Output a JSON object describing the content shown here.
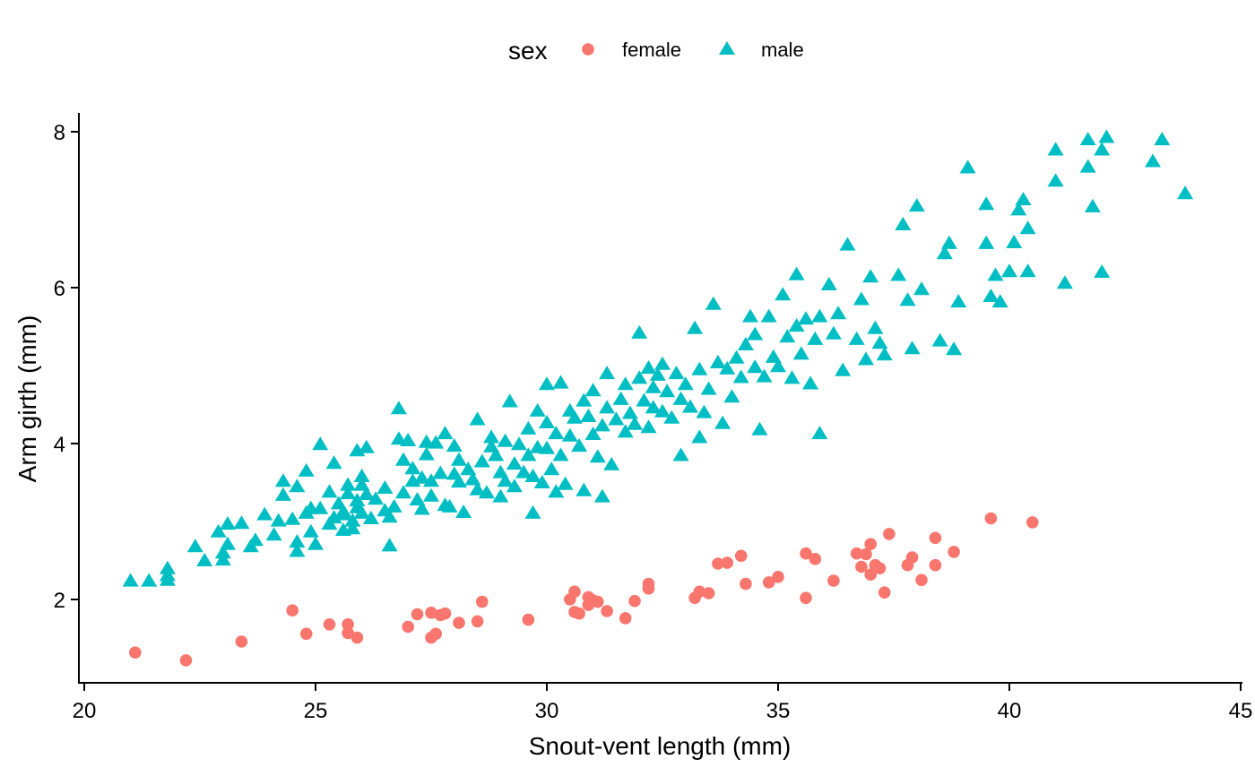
{
  "chart_data": {
    "type": "scatter",
    "title": "",
    "xlabel": "Snout-vent length (mm)",
    "ylabel": "Arm girth (mm)",
    "xlim": [
      19.8,
      45
    ],
    "ylim": [
      0.9,
      8.25
    ],
    "x_ticks": [
      20,
      25,
      30,
      35,
      40,
      45
    ],
    "x_tick_labels": [
      "20",
      "25",
      "30",
      "35",
      "40",
      "45"
    ],
    "y_ticks": [
      2,
      4,
      6,
      8
    ],
    "y_tick_labels": [
      "2",
      "4",
      "6",
      "8"
    ],
    "grid": false,
    "legend": {
      "title": "sex",
      "position": "top",
      "entries": [
        {
          "label": "female",
          "shape": "circle",
          "color": "#F8766D"
        },
        {
          "label": "male",
          "shape": "triangle",
          "color": "#00BFC4"
        }
      ]
    },
    "series": [
      {
        "name": "female",
        "shape": "circle",
        "color": "#F8766D",
        "points": [
          [
            21.1,
            1.32
          ],
          [
            22.2,
            1.22
          ],
          [
            23.4,
            1.46
          ],
          [
            24.5,
            1.86
          ],
          [
            24.8,
            1.56
          ],
          [
            25.3,
            1.68
          ],
          [
            25.7,
            1.68
          ],
          [
            25.7,
            1.57
          ],
          [
            25.9,
            1.51
          ],
          [
            27.0,
            1.65
          ],
          [
            27.2,
            1.81
          ],
          [
            27.5,
            1.83
          ],
          [
            27.5,
            1.51
          ],
          [
            27.6,
            1.56
          ],
          [
            27.7,
            1.8
          ],
          [
            27.8,
            1.82
          ],
          [
            28.1,
            1.7
          ],
          [
            28.5,
            1.72
          ],
          [
            28.6,
            1.97
          ],
          [
            29.6,
            1.74
          ],
          [
            30.5,
            2.0
          ],
          [
            30.6,
            2.1
          ],
          [
            30.6,
            1.84
          ],
          [
            30.7,
            1.82
          ],
          [
            30.9,
            2.03
          ],
          [
            30.9,
            1.93
          ],
          [
            31.0,
            1.99
          ],
          [
            31.1,
            1.97
          ],
          [
            31.3,
            1.85
          ],
          [
            31.7,
            1.76
          ],
          [
            31.9,
            1.98
          ],
          [
            32.2,
            2.2
          ],
          [
            32.2,
            2.14
          ],
          [
            33.2,
            2.02
          ],
          [
            33.3,
            2.1
          ],
          [
            33.5,
            2.08
          ],
          [
            33.7,
            2.46
          ],
          [
            33.9,
            2.47
          ],
          [
            34.2,
            2.56
          ],
          [
            34.3,
            2.2
          ],
          [
            34.8,
            2.22
          ],
          [
            35.0,
            2.29
          ],
          [
            35.6,
            2.02
          ],
          [
            35.6,
            2.59
          ],
          [
            35.8,
            2.52
          ],
          [
            36.2,
            2.24
          ],
          [
            36.7,
            2.59
          ],
          [
            36.8,
            2.42
          ],
          [
            36.9,
            2.58
          ],
          [
            37.0,
            2.71
          ],
          [
            37.0,
            2.32
          ],
          [
            37.1,
            2.44
          ],
          [
            37.2,
            2.4
          ],
          [
            37.3,
            2.09
          ],
          [
            37.4,
            2.84
          ],
          [
            37.8,
            2.44
          ],
          [
            37.9,
            2.54
          ],
          [
            38.1,
            2.25
          ],
          [
            38.4,
            2.44
          ],
          [
            38.4,
            2.79
          ],
          [
            38.8,
            2.61
          ],
          [
            39.6,
            3.04
          ],
          [
            40.5,
            2.99
          ]
        ]
      },
      {
        "name": "male",
        "shape": "triangle",
        "color": "#00BFC4",
        "points": [
          [
            21.0,
            2.24
          ],
          [
            21.4,
            2.24
          ],
          [
            21.8,
            2.25
          ],
          [
            21.8,
            2.31
          ],
          [
            21.8,
            2.4
          ],
          [
            22.4,
            2.68
          ],
          [
            22.6,
            2.5
          ],
          [
            22.9,
            2.87
          ],
          [
            23.0,
            2.51
          ],
          [
            23.0,
            2.6
          ],
          [
            23.1,
            2.71
          ],
          [
            23.1,
            2.97
          ],
          [
            23.4,
            2.98
          ],
          [
            23.6,
            2.68
          ],
          [
            23.7,
            2.76
          ],
          [
            23.9,
            3.09
          ],
          [
            24.1,
            2.83
          ],
          [
            24.2,
            3.01
          ],
          [
            24.3,
            3.34
          ],
          [
            24.3,
            3.52
          ],
          [
            24.5,
            3.03
          ],
          [
            24.6,
            2.74
          ],
          [
            24.6,
            3.45
          ],
          [
            24.6,
            2.62
          ],
          [
            24.8,
            3.11
          ],
          [
            24.8,
            3.65
          ],
          [
            24.9,
            2.87
          ],
          [
            24.9,
            3.17
          ],
          [
            25.0,
            2.71
          ],
          [
            25.1,
            3.99
          ],
          [
            25.1,
            3.17
          ],
          [
            25.3,
            3.38
          ],
          [
            25.3,
            2.97
          ],
          [
            25.4,
            3.75
          ],
          [
            25.4,
            3.05
          ],
          [
            25.5,
            3.23
          ],
          [
            25.6,
            3.13
          ],
          [
            25.6,
            2.89
          ],
          [
            25.6,
            3.09
          ],
          [
            25.7,
            3.47
          ],
          [
            25.7,
            3.36
          ],
          [
            25.8,
            3.01
          ],
          [
            25.8,
            2.91
          ],
          [
            25.9,
            3.27
          ],
          [
            25.9,
            3.18
          ],
          [
            25.9,
            3.91
          ],
          [
            26.0,
            3.47
          ],
          [
            26.0,
            3.11
          ],
          [
            26.0,
            3.58
          ],
          [
            26.1,
            3.95
          ],
          [
            26.1,
            3.35
          ],
          [
            26.2,
            3.04
          ],
          [
            26.3,
            3.29
          ],
          [
            26.5,
            3.14
          ],
          [
            26.5,
            3.43
          ],
          [
            26.6,
            3.06
          ],
          [
            26.6,
            2.69
          ],
          [
            26.7,
            3.19
          ],
          [
            26.8,
            4.06
          ],
          [
            26.8,
            4.45
          ],
          [
            26.9,
            3.37
          ],
          [
            26.9,
            3.79
          ],
          [
            27.0,
            4.04
          ],
          [
            27.1,
            3.68
          ],
          [
            27.1,
            3.52
          ],
          [
            27.2,
            3.28
          ],
          [
            27.3,
            3.56
          ],
          [
            27.3,
            3.16
          ],
          [
            27.4,
            3.86
          ],
          [
            27.4,
            4.02
          ],
          [
            27.5,
            3.52
          ],
          [
            27.5,
            3.33
          ],
          [
            27.6,
            4.01
          ],
          [
            27.7,
            3.62
          ],
          [
            27.8,
            3.21
          ],
          [
            27.8,
            4.13
          ],
          [
            27.9,
            3.19
          ],
          [
            28.0,
            3.61
          ],
          [
            28.0,
            3.97
          ],
          [
            28.1,
            3.51
          ],
          [
            28.1,
            3.79
          ],
          [
            28.2,
            3.12
          ],
          [
            28.3,
            3.67
          ],
          [
            28.4,
            3.54
          ],
          [
            28.5,
            4.31
          ],
          [
            28.5,
            3.41
          ],
          [
            28.6,
            3.77
          ],
          [
            28.7,
            3.37
          ],
          [
            28.8,
            3.96
          ],
          [
            28.8,
            4.08
          ],
          [
            28.9,
            3.85
          ],
          [
            29.0,
            3.63
          ],
          [
            29.0,
            3.32
          ],
          [
            29.1,
            4.03
          ],
          [
            29.1,
            3.52
          ],
          [
            29.2,
            4.54
          ],
          [
            29.3,
            3.74
          ],
          [
            29.3,
            3.45
          ],
          [
            29.4,
            3.99
          ],
          [
            29.5,
            3.63
          ],
          [
            29.6,
            4.19
          ],
          [
            29.6,
            3.85
          ],
          [
            29.7,
            3.58
          ],
          [
            29.7,
            3.11
          ],
          [
            29.8,
            4.42
          ],
          [
            29.8,
            3.95
          ],
          [
            29.9,
            3.5
          ],
          [
            30.0,
            4.76
          ],
          [
            30.0,
            4.27
          ],
          [
            30.0,
            3.94
          ],
          [
            30.1,
            3.67
          ],
          [
            30.2,
            3.38
          ],
          [
            30.2,
            4.13
          ],
          [
            30.3,
            4.78
          ],
          [
            30.3,
            3.85
          ],
          [
            30.4,
            3.48
          ],
          [
            30.5,
            4.42
          ],
          [
            30.5,
            4.1
          ],
          [
            30.6,
            4.33
          ],
          [
            30.7,
            3.97
          ],
          [
            30.8,
            4.55
          ],
          [
            30.8,
            3.4
          ],
          [
            30.9,
            4.35
          ],
          [
            31.0,
            4.12
          ],
          [
            31.0,
            4.68
          ],
          [
            31.1,
            3.83
          ],
          [
            31.2,
            4.23
          ],
          [
            31.2,
            3.32
          ],
          [
            31.3,
            4.9
          ],
          [
            31.3,
            4.46
          ],
          [
            31.4,
            3.73
          ],
          [
            31.5,
            4.31
          ],
          [
            31.6,
            4.57
          ],
          [
            31.7,
            4.15
          ],
          [
            31.7,
            4.76
          ],
          [
            31.8,
            4.39
          ],
          [
            31.9,
            4.25
          ],
          [
            32.0,
            5.42
          ],
          [
            32.0,
            4.84
          ],
          [
            32.1,
            4.55
          ],
          [
            32.2,
            4.21
          ],
          [
            32.2,
            4.97
          ],
          [
            32.3,
            4.72
          ],
          [
            32.3,
            4.46
          ],
          [
            32.4,
            4.88
          ],
          [
            32.5,
            4.41
          ],
          [
            32.5,
            5.02
          ],
          [
            32.6,
            4.67
          ],
          [
            32.7,
            4.33
          ],
          [
            32.8,
            4.9
          ],
          [
            32.9,
            4.57
          ],
          [
            32.9,
            3.85
          ],
          [
            33.0,
            4.76
          ],
          [
            33.1,
            4.47
          ],
          [
            33.2,
            5.48
          ],
          [
            33.3,
            4.95
          ],
          [
            33.3,
            4.08
          ],
          [
            33.4,
            4.4
          ],
          [
            33.5,
            4.7
          ],
          [
            33.6,
            5.79
          ],
          [
            33.7,
            5.04
          ],
          [
            33.8,
            4.26
          ],
          [
            33.9,
            4.96
          ],
          [
            34.0,
            4.6
          ],
          [
            34.1,
            5.1
          ],
          [
            34.2,
            4.85
          ],
          [
            34.3,
            5.27
          ],
          [
            34.4,
            5.63
          ],
          [
            34.5,
            4.98
          ],
          [
            34.5,
            5.4
          ],
          [
            34.6,
            4.18
          ],
          [
            34.7,
            4.86
          ],
          [
            34.8,
            5.63
          ],
          [
            34.9,
            5.11
          ],
          [
            35.0,
            4.99
          ],
          [
            35.1,
            5.91
          ],
          [
            35.2,
            5.37
          ],
          [
            35.3,
            4.84
          ],
          [
            35.4,
            6.17
          ],
          [
            35.4,
            5.51
          ],
          [
            35.5,
            5.15
          ],
          [
            35.6,
            5.6
          ],
          [
            35.7,
            4.77
          ],
          [
            35.8,
            5.34
          ],
          [
            35.9,
            5.63
          ],
          [
            35.9,
            4.13
          ],
          [
            36.1,
            6.04
          ],
          [
            36.2,
            5.41
          ],
          [
            36.3,
            5.67
          ],
          [
            36.4,
            4.94
          ],
          [
            36.5,
            6.55
          ],
          [
            36.7,
            5.34
          ],
          [
            36.8,
            5.85
          ],
          [
            36.9,
            5.08
          ],
          [
            37.0,
            6.14
          ],
          [
            37.1,
            5.48
          ],
          [
            37.2,
            5.29
          ],
          [
            37.3,
            5.14
          ],
          [
            37.6,
            6.16
          ],
          [
            37.7,
            6.81
          ],
          [
            37.8,
            5.84
          ],
          [
            37.9,
            5.22
          ],
          [
            38.0,
            7.05
          ],
          [
            38.1,
            5.98
          ],
          [
            38.5,
            5.32
          ],
          [
            38.6,
            6.44
          ],
          [
            38.7,
            6.57
          ],
          [
            38.8,
            5.21
          ],
          [
            38.9,
            5.82
          ],
          [
            39.1,
            7.54
          ],
          [
            39.5,
            7.07
          ],
          [
            39.5,
            6.57
          ],
          [
            39.6,
            5.89
          ],
          [
            39.7,
            6.16
          ],
          [
            39.8,
            5.82
          ],
          [
            40.0,
            6.21
          ],
          [
            40.1,
            6.58
          ],
          [
            40.2,
            7.0
          ],
          [
            40.3,
            7.13
          ],
          [
            40.4,
            6.76
          ],
          [
            40.4,
            6.21
          ],
          [
            41.0,
            7.37
          ],
          [
            41.0,
            7.77
          ],
          [
            41.2,
            6.06
          ],
          [
            41.7,
            7.9
          ],
          [
            41.7,
            7.55
          ],
          [
            41.8,
            7.04
          ],
          [
            42.0,
            6.2
          ],
          [
            42.0,
            7.77
          ],
          [
            42.1,
            7.93
          ],
          [
            43.1,
            7.62
          ],
          [
            43.3,
            7.9
          ],
          [
            43.8,
            7.21
          ]
        ]
      }
    ]
  }
}
